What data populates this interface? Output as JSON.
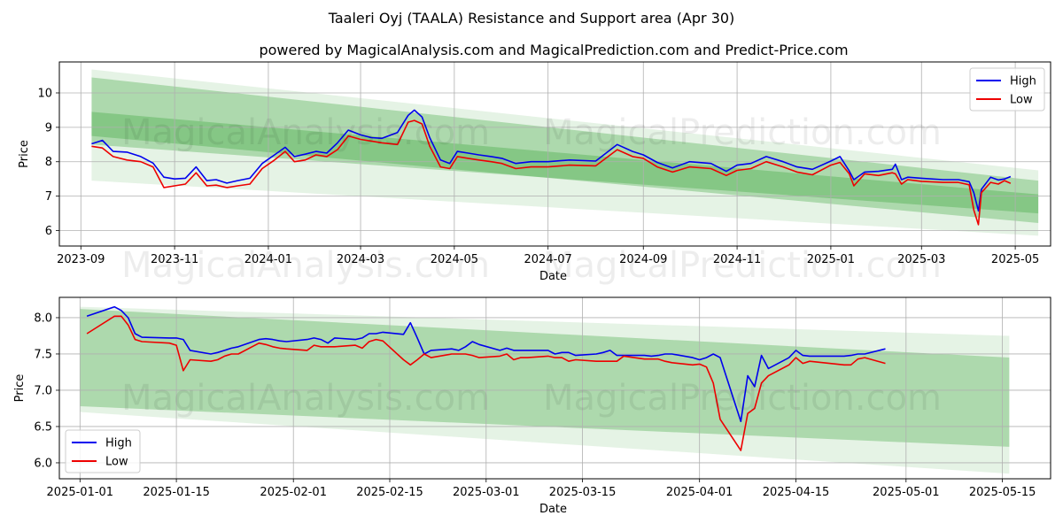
{
  "title": "Taaleri Oyj (TAALA) Resistance and Support area (Apr 30)",
  "subtitle": "powered by MagicalAnalysis.com and MagicalPrediction.com and Predict-Price.com",
  "watermarks": [
    "MagicalAnalysis.com",
    "MagicalPrediction.com"
  ],
  "colors": {
    "high": "#0000ee",
    "low": "#ee0000",
    "band": "#2ca02c",
    "grid": "#b0b0b0"
  },
  "chart_data": [
    {
      "type": "line",
      "xlabel": "Date",
      "ylabel": "Price",
      "grid": true,
      "legend_position": "top-right",
      "xlim": [
        "2023-08-18",
        "2025-05-24"
      ],
      "ylim": [
        5.55,
        10.9
      ],
      "x_ticks": [
        "2023-09",
        "2023-11",
        "2024-01",
        "2024-03",
        "2024-05",
        "2024-07",
        "2024-09",
        "2024-11",
        "2025-01",
        "2025-03",
        "2025-05"
      ],
      "x_tick_dates": [
        "2023-09-01",
        "2023-11-01",
        "2024-01-01",
        "2024-03-01",
        "2024-05-01",
        "2024-07-01",
        "2024-09-01",
        "2024-11-01",
        "2025-01-01",
        "2025-03-01",
        "2025-05-01"
      ],
      "y_ticks": [
        6,
        7,
        8,
        9,
        10
      ],
      "bands": [
        {
          "start": "2023-09-08",
          "end": "2025-05-16",
          "upper": [
            10.68,
            7.75
          ],
          "lower": [
            7.45,
            5.85
          ]
        },
        {
          "start": "2023-09-08",
          "end": "2025-05-16",
          "upper": [
            10.45,
            7.45
          ],
          "lower": [
            8.75,
            6.22
          ]
        },
        {
          "start": "2023-09-08",
          "end": "2025-05-16",
          "upper": [
            9.45,
            7.05
          ],
          "lower": [
            8.5,
            6.5
          ]
        }
      ],
      "series": [
        {
          "name": "High",
          "x": [
            "2023-09-08",
            "2023-09-15",
            "2023-09-22",
            "2023-10-01",
            "2023-10-10",
            "2023-10-18",
            "2023-10-25",
            "2023-11-01",
            "2023-11-08",
            "2023-11-15",
            "2023-11-22",
            "2023-11-28",
            "2023-12-05",
            "2023-12-12",
            "2023-12-20",
            "2023-12-28",
            "2024-01-05",
            "2024-01-12",
            "2024-01-18",
            "2024-01-25",
            "2024-02-01",
            "2024-02-08",
            "2024-02-15",
            "2024-02-22",
            "2024-03-01",
            "2024-03-08",
            "2024-03-15",
            "2024-03-25",
            "2024-04-01",
            "2024-04-05",
            "2024-04-10",
            "2024-04-15",
            "2024-04-22",
            "2024-04-28",
            "2024-05-03",
            "2024-05-10",
            "2024-05-17",
            "2024-05-25",
            "2024-06-01",
            "2024-06-10",
            "2024-06-20",
            "2024-07-01",
            "2024-07-15",
            "2024-08-01",
            "2024-08-15",
            "2024-08-25",
            "2024-09-01",
            "2024-09-10",
            "2024-09-20",
            "2024-10-01",
            "2024-10-15",
            "2024-10-25",
            "2024-11-01",
            "2024-11-10",
            "2024-11-20",
            "2024-12-01",
            "2024-12-10",
            "2024-12-20",
            "2025-01-01",
            "2025-01-07",
            "2025-01-13",
            "2025-01-16",
            "2025-01-23",
            "2025-02-01",
            "2025-02-10",
            "2025-02-12",
            "2025-02-16",
            "2025-02-20",
            "2025-03-01",
            "2025-03-15",
            "2025-03-25",
            "2025-04-01",
            "2025-04-04",
            "2025-04-07",
            "2025-04-09",
            "2025-04-15",
            "2025-04-20",
            "2025-04-24",
            "2025-04-28"
          ],
          "values": [
            8.52,
            8.62,
            8.3,
            8.28,
            8.15,
            7.96,
            7.55,
            7.5,
            7.52,
            7.85,
            7.45,
            7.48,
            7.38,
            7.45,
            7.52,
            7.95,
            8.2,
            8.42,
            8.15,
            8.22,
            8.3,
            8.25,
            8.55,
            8.92,
            8.78,
            8.7,
            8.68,
            8.85,
            9.35,
            9.5,
            9.3,
            8.7,
            8.05,
            7.95,
            8.3,
            8.25,
            8.2,
            8.15,
            8.1,
            7.95,
            8.0,
            8.0,
            8.05,
            8.02,
            8.5,
            8.3,
            8.2,
            7.98,
            7.82,
            8.0,
            7.95,
            7.72,
            7.9,
            7.95,
            8.15,
            8.0,
            7.85,
            7.78,
            8.02,
            8.15,
            7.73,
            7.48,
            7.7,
            7.72,
            7.78,
            7.93,
            7.48,
            7.55,
            7.52,
            7.48,
            7.48,
            7.42,
            7.1,
            6.57,
            7.2,
            7.55,
            7.47,
            7.5,
            7.57
          ]
        },
        {
          "name": "Low",
          "x": [
            "2023-09-08",
            "2023-09-15",
            "2023-09-22",
            "2023-10-01",
            "2023-10-10",
            "2023-10-18",
            "2023-10-25",
            "2023-11-01",
            "2023-11-08",
            "2023-11-15",
            "2023-11-22",
            "2023-11-28",
            "2023-12-05",
            "2023-12-12",
            "2023-12-20",
            "2023-12-28",
            "2024-01-05",
            "2024-01-12",
            "2024-01-18",
            "2024-01-25",
            "2024-02-01",
            "2024-02-08",
            "2024-02-15",
            "2024-02-22",
            "2024-03-01",
            "2024-03-08",
            "2024-03-15",
            "2024-03-25",
            "2024-04-01",
            "2024-04-05",
            "2024-04-10",
            "2024-04-15",
            "2024-04-22",
            "2024-04-28",
            "2024-05-03",
            "2024-05-10",
            "2024-05-17",
            "2024-05-25",
            "2024-06-01",
            "2024-06-10",
            "2024-06-20",
            "2024-07-01",
            "2024-07-15",
            "2024-08-01",
            "2024-08-15",
            "2024-08-25",
            "2024-09-01",
            "2024-09-10",
            "2024-09-20",
            "2024-10-01",
            "2024-10-15",
            "2024-10-25",
            "2024-11-01",
            "2024-11-10",
            "2024-11-20",
            "2024-12-01",
            "2024-12-10",
            "2024-12-20",
            "2025-01-01",
            "2025-01-07",
            "2025-01-13",
            "2025-01-16",
            "2025-01-23",
            "2025-02-01",
            "2025-02-10",
            "2025-02-12",
            "2025-02-16",
            "2025-02-20",
            "2025-03-01",
            "2025-03-15",
            "2025-03-25",
            "2025-04-01",
            "2025-04-04",
            "2025-04-07",
            "2025-04-09",
            "2025-04-15",
            "2025-04-20",
            "2025-04-24",
            "2025-04-28"
          ],
          "values": [
            8.45,
            8.4,
            8.15,
            8.05,
            8.0,
            7.85,
            7.25,
            7.3,
            7.35,
            7.68,
            7.3,
            7.32,
            7.25,
            7.3,
            7.35,
            7.8,
            8.05,
            8.3,
            8.0,
            8.05,
            8.2,
            8.15,
            8.35,
            8.75,
            8.65,
            8.6,
            8.55,
            8.5,
            9.15,
            9.2,
            9.1,
            8.45,
            7.85,
            7.8,
            8.15,
            8.1,
            8.05,
            8.0,
            7.95,
            7.8,
            7.85,
            7.85,
            7.9,
            7.88,
            8.35,
            8.15,
            8.1,
            7.85,
            7.7,
            7.85,
            7.8,
            7.6,
            7.75,
            7.8,
            8.0,
            7.85,
            7.7,
            7.62,
            7.9,
            7.98,
            7.65,
            7.3,
            7.65,
            7.6,
            7.68,
            7.65,
            7.35,
            7.48,
            7.43,
            7.4,
            7.4,
            7.33,
            6.6,
            6.17,
            7.1,
            7.4,
            7.35,
            7.45,
            7.37
          ]
        }
      ]
    },
    {
      "type": "line",
      "xlabel": "Date",
      "ylabel": "Price",
      "grid": true,
      "legend_position": "bottom-left",
      "xlim": [
        "2024-12-29",
        "2025-05-22"
      ],
      "ylim": [
        5.78,
        8.28
      ],
      "x_ticks": [
        "2025-01-01",
        "2025-01-15",
        "2025-02-01",
        "2025-02-15",
        "2025-03-01",
        "2025-03-15",
        "2025-04-01",
        "2025-04-15",
        "2025-05-01",
        "2025-05-15"
      ],
      "x_tick_dates": [
        "2025-01-01",
        "2025-01-15",
        "2025-02-01",
        "2025-02-15",
        "2025-03-01",
        "2025-03-15",
        "2025-04-01",
        "2025-04-15",
        "2025-05-01",
        "2025-05-15"
      ],
      "y_ticks": [
        6.0,
        6.5,
        7.0,
        7.5,
        8.0
      ],
      "y_tick_labels": [
        "6.0",
        "6.5",
        "7.0",
        "7.5",
        "8.0"
      ],
      "bands": [
        {
          "start": "2025-01-01",
          "end": "2025-05-16",
          "upper": [
            8.15,
            7.75
          ],
          "lower": [
            6.7,
            5.85
          ]
        },
        {
          "start": "2025-01-01",
          "end": "2025-05-16",
          "upper": [
            8.12,
            7.45
          ],
          "lower": [
            6.78,
            6.22
          ]
        }
      ],
      "series": [
        {
          "name": "High",
          "x": [
            "2025-01-02",
            "2025-01-06",
            "2025-01-07",
            "2025-01-08",
            "2025-01-09",
            "2025-01-10",
            "2025-01-14",
            "2025-01-15",
            "2025-01-16",
            "2025-01-17",
            "2025-01-20",
            "2025-01-21",
            "2025-01-22",
            "2025-01-23",
            "2025-01-24",
            "2025-01-27",
            "2025-01-28",
            "2025-01-29",
            "2025-01-30",
            "2025-01-31",
            "2025-02-03",
            "2025-02-04",
            "2025-02-05",
            "2025-02-06",
            "2025-02-07",
            "2025-02-10",
            "2025-02-11",
            "2025-02-12",
            "2025-02-13",
            "2025-02-14",
            "2025-02-17",
            "2025-02-18",
            "2025-02-19",
            "2025-02-20",
            "2025-02-21",
            "2025-02-24",
            "2025-02-25",
            "2025-02-26",
            "2025-02-27",
            "2025-02-28",
            "2025-03-03",
            "2025-03-04",
            "2025-03-05",
            "2025-03-06",
            "2025-03-07",
            "2025-03-10",
            "2025-03-11",
            "2025-03-12",
            "2025-03-13",
            "2025-03-14",
            "2025-03-17",
            "2025-03-18",
            "2025-03-19",
            "2025-03-20",
            "2025-03-21",
            "2025-03-24",
            "2025-03-25",
            "2025-03-26",
            "2025-03-27",
            "2025-03-28",
            "2025-03-31",
            "2025-04-01",
            "2025-04-02",
            "2025-04-03",
            "2025-04-04",
            "2025-04-07",
            "2025-04-08",
            "2025-04-09",
            "2025-04-10",
            "2025-04-11",
            "2025-04-14",
            "2025-04-15",
            "2025-04-16",
            "2025-04-17",
            "2025-04-22",
            "2025-04-23",
            "2025-04-24",
            "2025-04-25",
            "2025-04-28"
          ],
          "values": [
            8.02,
            8.15,
            8.1,
            8.0,
            7.78,
            7.73,
            7.72,
            7.72,
            7.7,
            7.55,
            7.5,
            7.52,
            7.55,
            7.58,
            7.6,
            7.7,
            7.71,
            7.7,
            7.68,
            7.67,
            7.7,
            7.72,
            7.7,
            7.65,
            7.72,
            7.7,
            7.72,
            7.78,
            7.78,
            7.8,
            7.77,
            7.93,
            7.72,
            7.5,
            7.55,
            7.57,
            7.55,
            7.6,
            7.67,
            7.63,
            7.55,
            7.58,
            7.55,
            7.55,
            7.55,
            7.55,
            7.5,
            7.52,
            7.52,
            7.48,
            7.5,
            7.52,
            7.55,
            7.48,
            7.48,
            7.48,
            7.47,
            7.48,
            7.5,
            7.5,
            7.45,
            7.42,
            7.45,
            7.5,
            7.45,
            6.57,
            7.2,
            7.05,
            7.48,
            7.3,
            7.45,
            7.55,
            7.48,
            7.47,
            7.47,
            7.48,
            7.5,
            7.5,
            7.57
          ]
        },
        {
          "name": "Low",
          "x": [
            "2025-01-02",
            "2025-01-06",
            "2025-01-07",
            "2025-01-08",
            "2025-01-09",
            "2025-01-10",
            "2025-01-14",
            "2025-01-15",
            "2025-01-16",
            "2025-01-17",
            "2025-01-20",
            "2025-01-21",
            "2025-01-22",
            "2025-01-23",
            "2025-01-24",
            "2025-01-27",
            "2025-01-28",
            "2025-01-29",
            "2025-01-30",
            "2025-01-31",
            "2025-02-03",
            "2025-02-04",
            "2025-02-05",
            "2025-02-06",
            "2025-02-07",
            "2025-02-10",
            "2025-02-11",
            "2025-02-12",
            "2025-02-13",
            "2025-02-14",
            "2025-02-17",
            "2025-02-18",
            "2025-02-19",
            "2025-02-20",
            "2025-02-21",
            "2025-02-24",
            "2025-02-25",
            "2025-02-26",
            "2025-02-27",
            "2025-02-28",
            "2025-03-03",
            "2025-03-04",
            "2025-03-05",
            "2025-03-06",
            "2025-03-07",
            "2025-03-10",
            "2025-03-11",
            "2025-03-12",
            "2025-03-13",
            "2025-03-14",
            "2025-03-17",
            "2025-03-18",
            "2025-03-19",
            "2025-03-20",
            "2025-03-21",
            "2025-03-24",
            "2025-03-25",
            "2025-03-26",
            "2025-03-27",
            "2025-03-28",
            "2025-03-31",
            "2025-04-01",
            "2025-04-02",
            "2025-04-03",
            "2025-04-04",
            "2025-04-07",
            "2025-04-08",
            "2025-04-09",
            "2025-04-10",
            "2025-04-11",
            "2025-04-14",
            "2025-04-15",
            "2025-04-16",
            "2025-04-17",
            "2025-04-22",
            "2025-04-23",
            "2025-04-24",
            "2025-04-25",
            "2025-04-28"
          ],
          "values": [
            7.78,
            8.02,
            8.02,
            7.9,
            7.7,
            7.67,
            7.65,
            7.62,
            7.27,
            7.42,
            7.4,
            7.42,
            7.47,
            7.5,
            7.5,
            7.65,
            7.63,
            7.6,
            7.58,
            7.57,
            7.55,
            7.62,
            7.6,
            7.6,
            7.6,
            7.62,
            7.58,
            7.67,
            7.7,
            7.68,
            7.42,
            7.35,
            7.42,
            7.5,
            7.45,
            7.5,
            7.5,
            7.5,
            7.48,
            7.45,
            7.47,
            7.5,
            7.42,
            7.45,
            7.45,
            7.47,
            7.45,
            7.45,
            7.4,
            7.42,
            7.4,
            7.4,
            7.4,
            7.4,
            7.47,
            7.43,
            7.43,
            7.43,
            7.4,
            7.38,
            7.35,
            7.36,
            7.32,
            7.1,
            6.6,
            6.17,
            6.68,
            6.75,
            7.1,
            7.2,
            7.35,
            7.45,
            7.37,
            7.4,
            7.35,
            7.35,
            7.43,
            7.45,
            7.37
          ]
        }
      ]
    }
  ]
}
